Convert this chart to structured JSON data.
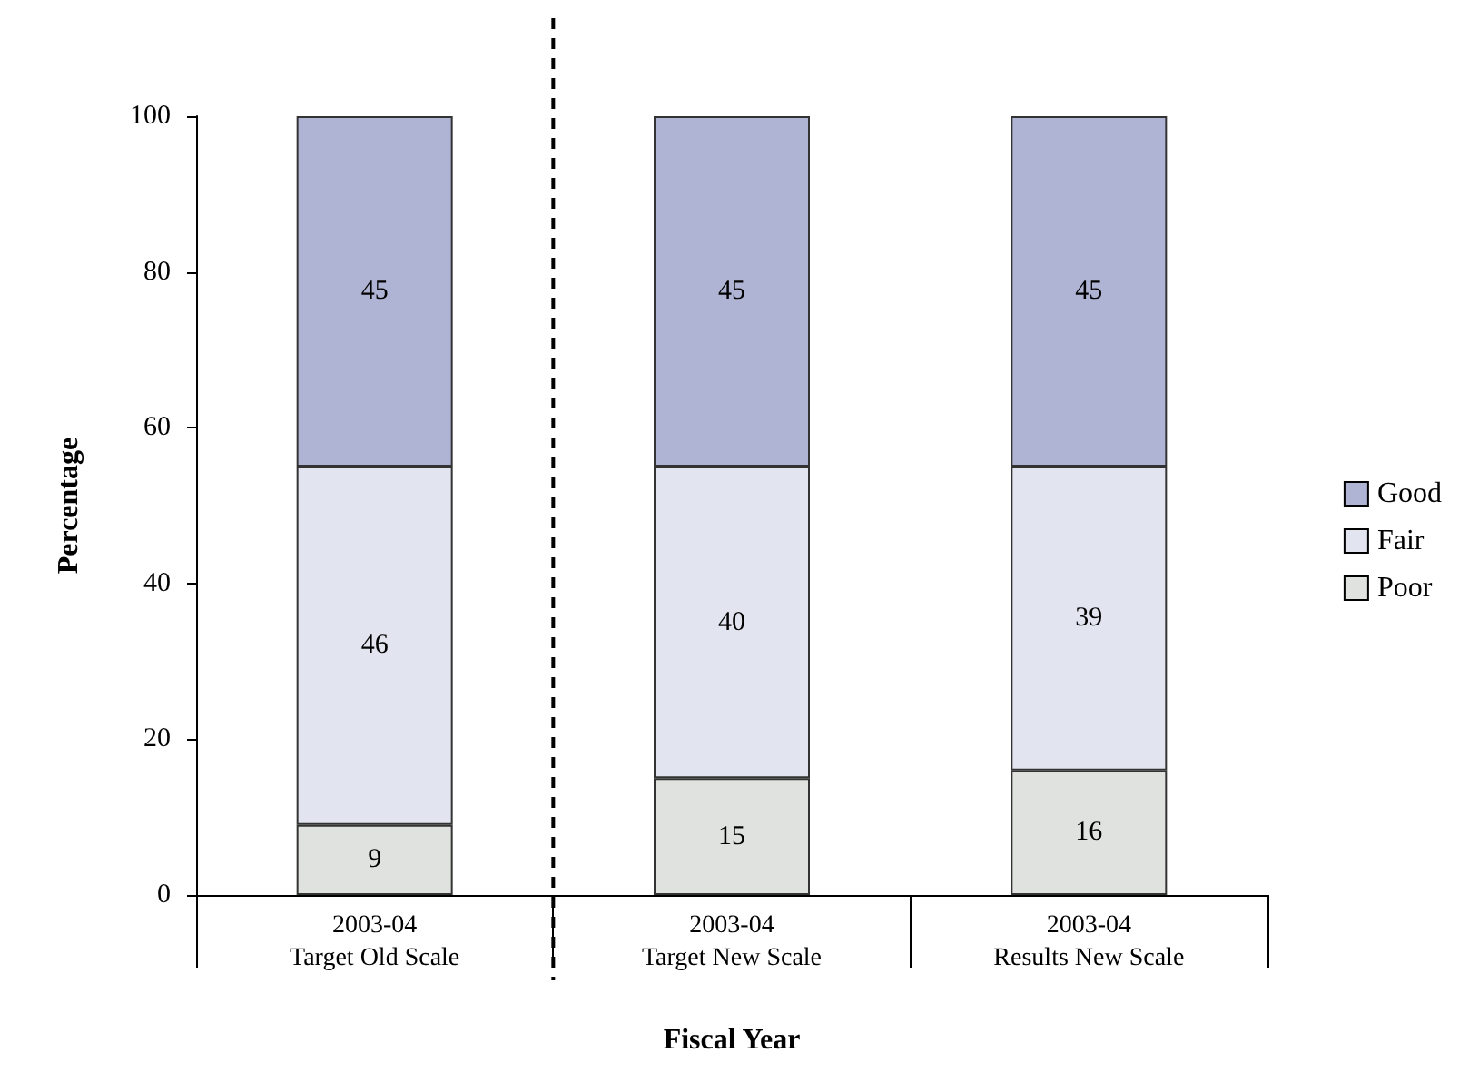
{
  "chart_data": {
    "type": "bar",
    "stacked": true,
    "xlabel": "Fiscal Year",
    "ylabel": "Percentage",
    "categories": [
      "2003-04\nTarget Old Scale",
      "2003-04\nTarget New Scale",
      "2003-04\nResults New Scale"
    ],
    "series": [
      {
        "name": "Poor",
        "color": "#e0e2df",
        "values": [
          9,
          15,
          16
        ]
      },
      {
        "name": "Fair",
        "color": "#e2e4ef",
        "values": [
          46,
          40,
          39
        ]
      },
      {
        "name": "Good",
        "color": "#b0b4d4",
        "values": [
          45,
          45,
          45
        ]
      }
    ],
    "ylim": [
      0,
      100
    ],
    "yticks": [
      0,
      20,
      40,
      60,
      80,
      100
    ],
    "legend": "right",
    "data_labels": true
  }
}
